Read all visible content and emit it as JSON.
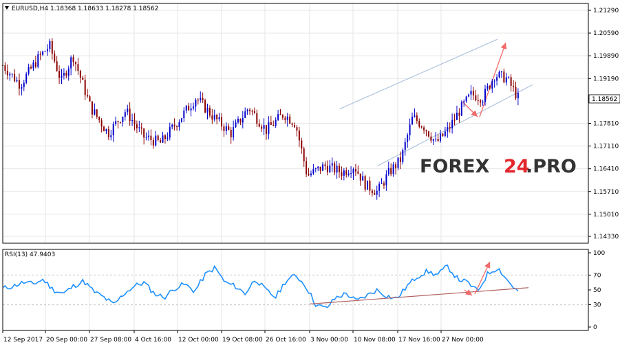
{
  "header": {
    "symbol_info": "EURUSD,H4  1.18368 1.18633 1.18278 1.18562",
    "indicator_info": "RSI(13) 47.9403"
  },
  "watermark": {
    "part1": "FOREX",
    "part2": "24",
    "part3": ".PRO"
  },
  "colors": {
    "bull": "#0000cc",
    "bear": "#8b0000",
    "rsi": "#1e90ff",
    "channel": "#b0c4de",
    "arrow": "#f26a6a",
    "trendline": "#b06060",
    "grid": "#e6e6e6",
    "logo_dark": "#333333",
    "logo_red": "#e3262c"
  },
  "chart_data": [
    {
      "type": "candlestick",
      "symbol": "EURUSD",
      "timeframe": "H4",
      "ohlc_last": {
        "open": 1.18368,
        "high": 1.18633,
        "low": 1.18278,
        "close": 1.18562
      },
      "current_price_label": "1.18562",
      "y_ticks": [
        "1.21290",
        "1.20590",
        "1.19890",
        "1.19190",
        "1.17810",
        "1.17110",
        "1.16410",
        "1.15710",
        "1.15010",
        "1.14330"
      ],
      "ylim": [
        1.1433,
        1.2129
      ],
      "x_ticks": [
        "12 Sep 2017",
        "20 Sep 00:00",
        "27 Sep 08:00",
        "4 Oct 16:00",
        "12 Oct 00:00",
        "19 Oct 08:00",
        "26 Oct 16:00",
        "3 Nov 00:00",
        "10 Nov 08:00",
        "17 Nov 16:00",
        "27 Nov 00:00"
      ],
      "approx_close_path": [
        [
          0,
          1.196
        ],
        [
          0.03,
          1.19
        ],
        [
          0.06,
          1.198
        ],
        [
          0.08,
          1.202
        ],
        [
          0.1,
          1.191
        ],
        [
          0.12,
          1.199
        ],
        [
          0.15,
          1.183
        ],
        [
          0.18,
          1.175
        ],
        [
          0.21,
          1.182
        ],
        [
          0.24,
          1.174
        ],
        [
          0.27,
          1.172
        ],
        [
          0.3,
          1.179
        ],
        [
          0.33,
          1.186
        ],
        [
          0.36,
          1.18
        ],
        [
          0.39,
          1.175
        ],
        [
          0.42,
          1.183
        ],
        [
          0.45,
          1.176
        ],
        [
          0.48,
          1.181
        ],
        [
          0.5,
          1.178
        ],
        [
          0.52,
          1.162
        ],
        [
          0.55,
          1.165
        ],
        [
          0.58,
          1.163
        ],
        [
          0.6,
          1.165
        ],
        [
          0.62,
          1.159
        ],
        [
          0.64,
          1.157
        ],
        [
          0.66,
          1.163
        ],
        [
          0.68,
          1.167
        ],
        [
          0.7,
          1.18
        ],
        [
          0.72,
          1.177
        ],
        [
          0.74,
          1.172
        ],
        [
          0.76,
          1.176
        ],
        [
          0.78,
          1.182
        ],
        [
          0.8,
          1.187
        ],
        [
          0.82,
          1.186
        ],
        [
          0.84,
          1.193
        ],
        [
          0.86,
          1.192
        ],
        [
          0.88,
          1.186
        ]
      ]
    },
    {
      "type": "line",
      "name": "RSI(13)",
      "last_value": 47.9403,
      "y_ticks": [
        "100",
        "70",
        "50",
        "30",
        "0"
      ],
      "ylim": [
        0,
        100
      ],
      "approx_values": [
        52,
        55,
        60,
        58,
        64,
        50,
        45,
        55,
        62,
        48,
        40,
        30,
        45,
        55,
        60,
        45,
        40,
        52,
        58,
        48,
        70,
        80,
        60,
        55,
        45,
        65,
        50,
        40,
        62,
        70,
        55,
        30,
        25,
        40,
        45,
        35,
        42,
        50,
        42,
        38,
        55,
        68,
        75,
        70,
        82,
        65,
        60,
        48,
        72,
        80,
        62,
        47
      ]
    }
  ]
}
